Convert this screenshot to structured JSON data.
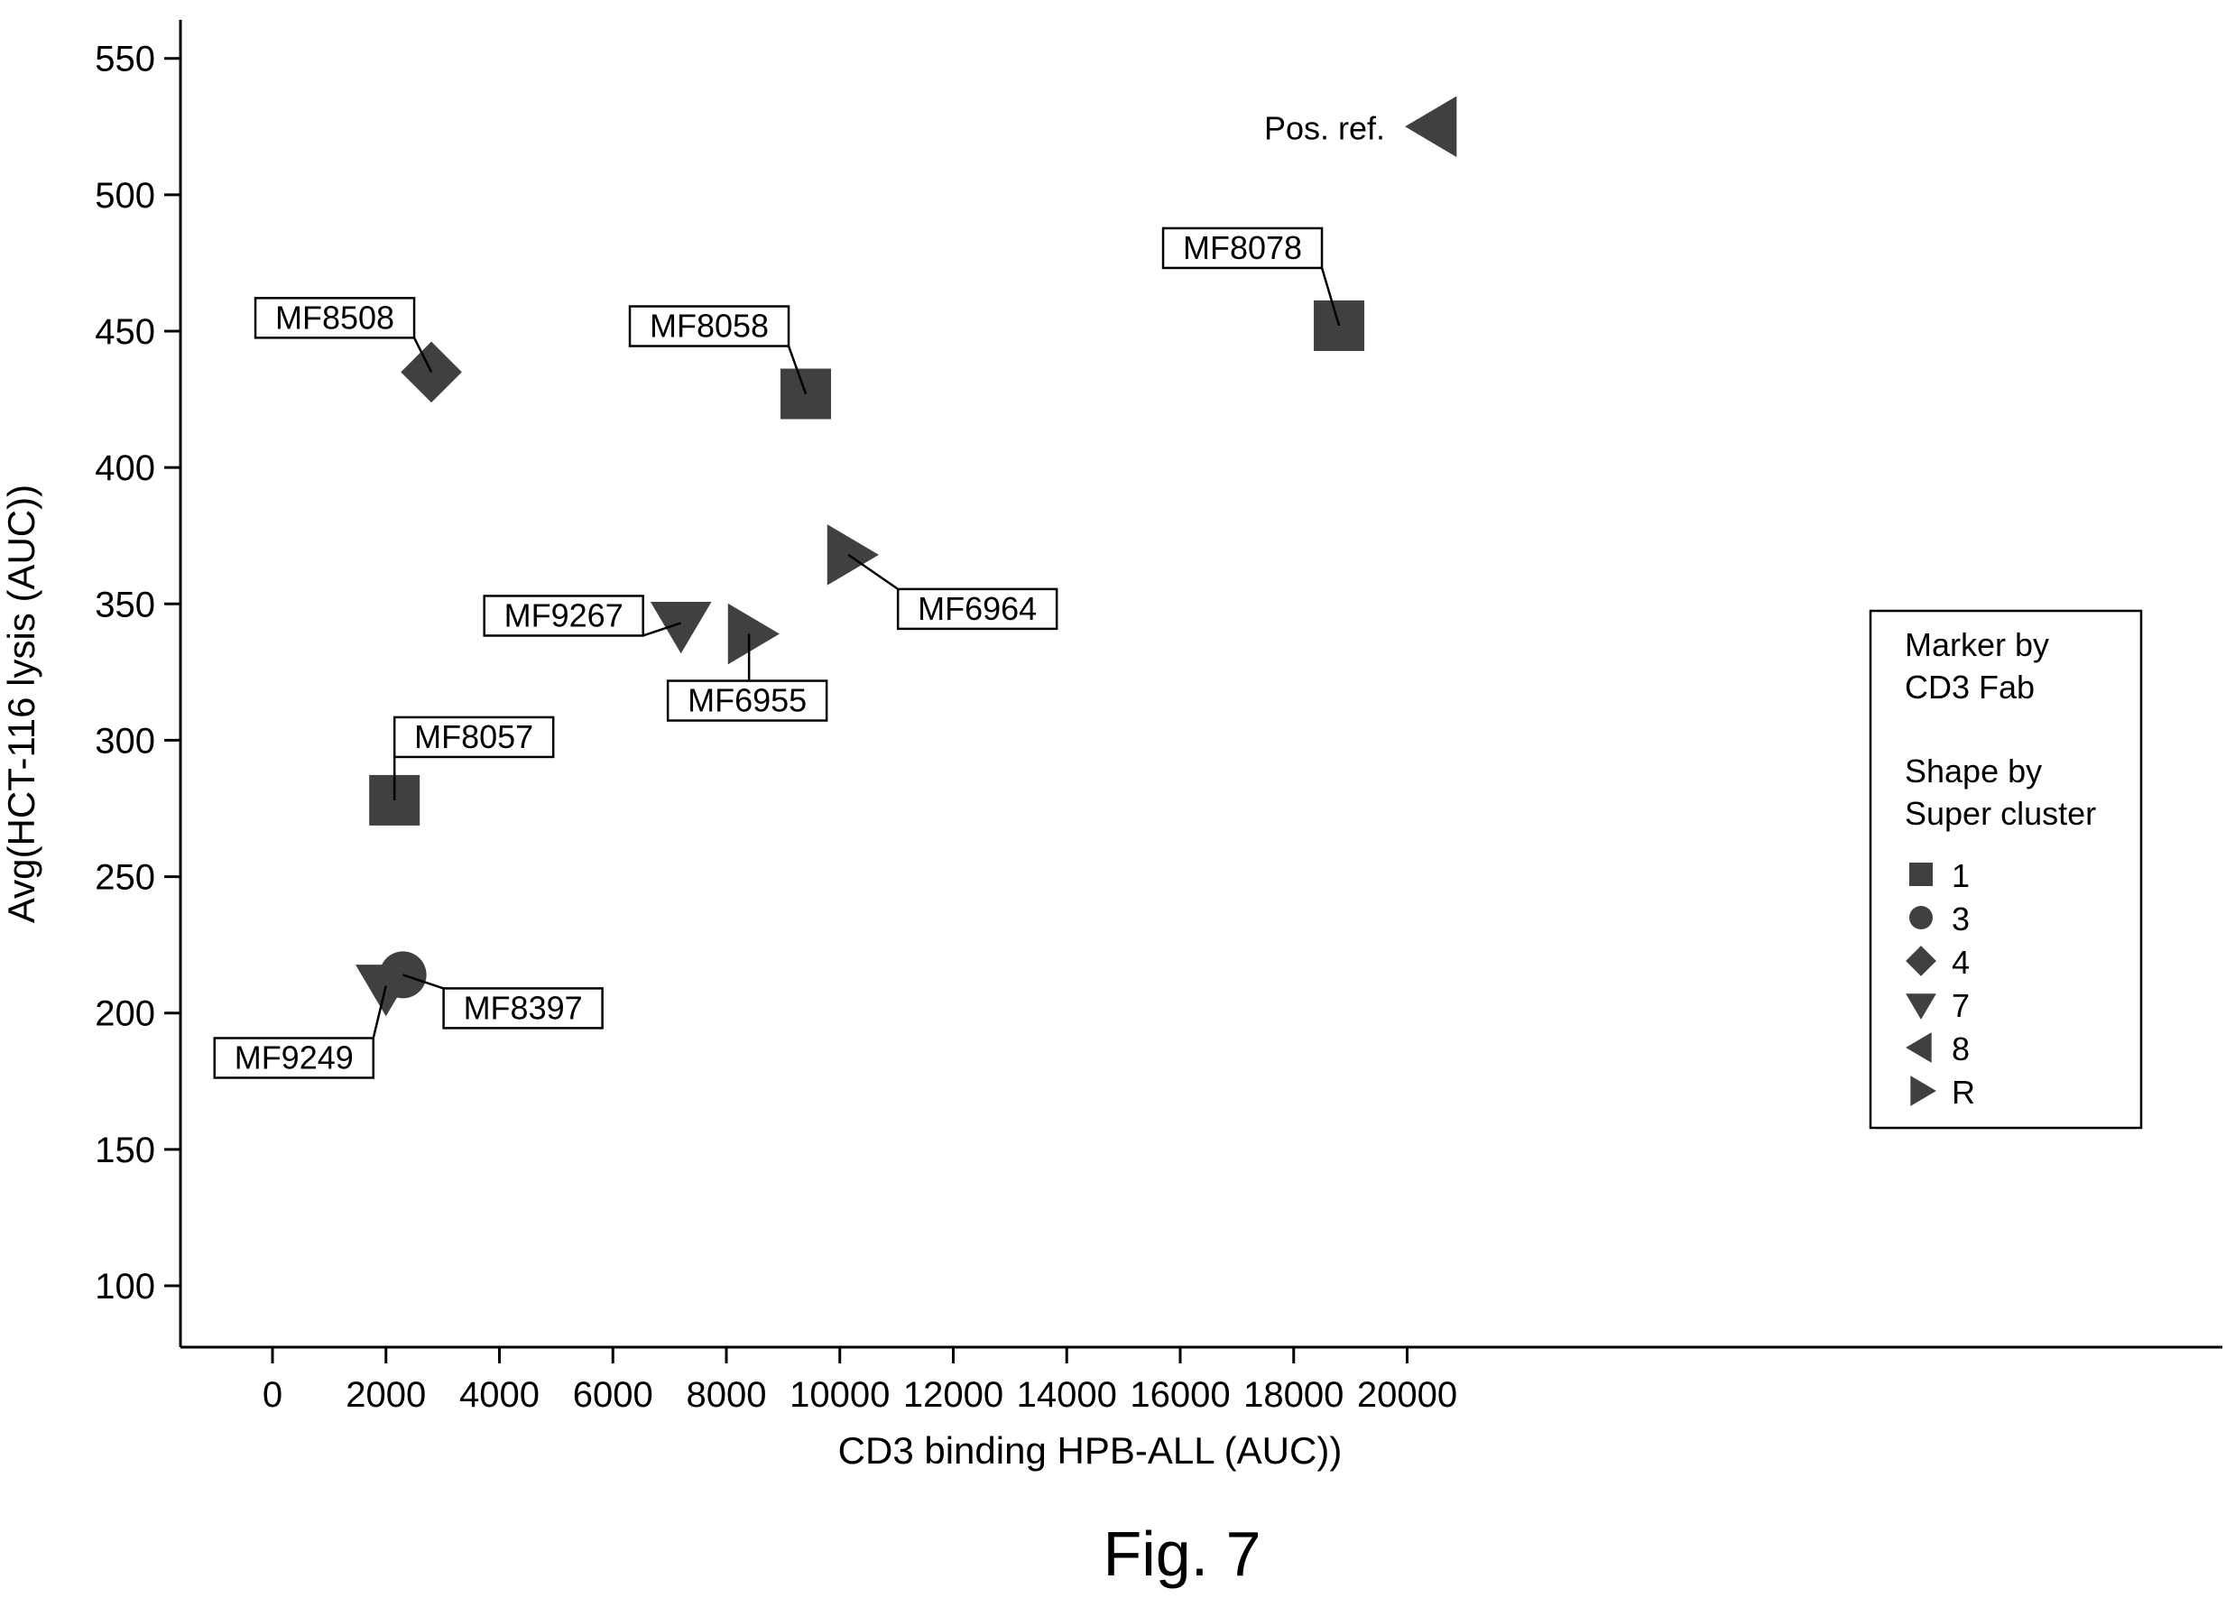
{
  "chart_data": {
    "type": "scatter",
    "xlabel": "CD3 binding HPB-ALL (AUC))",
    "ylabel": "Avg(HCT-116 lysis (AUC))",
    "xlim": [
      -1000,
      21700
    ],
    "ylim": [
      77,
      565
    ],
    "xticks": [
      0,
      2000,
      4000,
      6000,
      8000,
      10000,
      12000,
      14000,
      16000,
      18000,
      20000
    ],
    "yticks": [
      100,
      150,
      200,
      250,
      300,
      350,
      400,
      450,
      500,
      550
    ],
    "grid": false,
    "points": [
      {
        "label": "Pos. ref.",
        "x": 20500,
        "y": 525,
        "cluster": "8"
      },
      {
        "label": "MF8078",
        "x": 18800,
        "y": 452,
        "cluster": "1"
      },
      {
        "label": "MF8508",
        "x": 2800,
        "y": 435,
        "cluster": "4"
      },
      {
        "label": "MF8058",
        "x": 9400,
        "y": 427,
        "cluster": "1"
      },
      {
        "label": "MF6964",
        "x": 10150,
        "y": 368,
        "cluster": "R"
      },
      {
        "label": "MF9267",
        "x": 7200,
        "y": 343,
        "cluster": "7"
      },
      {
        "label": "MF6955",
        "x": 8400,
        "y": 339,
        "cluster": "R"
      },
      {
        "label": "MF8057",
        "x": 2150,
        "y": 278,
        "cluster": "1"
      },
      {
        "label": "MF8397",
        "x": 2300,
        "y": 214,
        "cluster": "3"
      },
      {
        "label": "MF9249",
        "x": 2000,
        "y": 210,
        "cluster": "7"
      }
    ],
    "legend": {
      "position": "right",
      "title_lines": [
        "Marker by",
        "CD3 Fab",
        "Shape by",
        "Super cluster"
      ],
      "entries": [
        {
          "label": "1",
          "shape": "square"
        },
        {
          "label": "3",
          "shape": "circle"
        },
        {
          "label": "4",
          "shape": "diamond"
        },
        {
          "label": "7",
          "shape": "triangle-down"
        },
        {
          "label": "8",
          "shape": "triangle-left"
        },
        {
          "label": "R",
          "shape": "triangle-right"
        }
      ]
    },
    "marker_color": "#404040"
  },
  "caption": "Fig. 7"
}
